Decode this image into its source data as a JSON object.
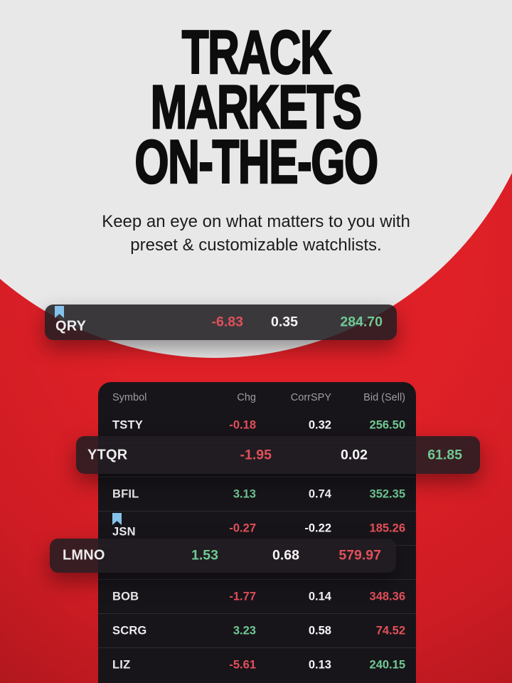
{
  "hero": {
    "title_lines": [
      "TRACK",
      "MARKETS",
      "ON-THE-GO"
    ],
    "subtitle_lines": [
      "Keep an eye on what matters to you with",
      "preset & customizable watchlists."
    ]
  },
  "pills": [
    {
      "symbol": "QRY",
      "bookmarked": true,
      "chg": {
        "text": "-6.83",
        "tone": "down"
      },
      "corrspy": {
        "text": "0.35",
        "tone": "neutral"
      },
      "bid": {
        "text": "284.70",
        "tone": "up"
      }
    },
    {
      "symbol": "YTQR",
      "bookmarked": false,
      "chg": {
        "text": "-1.95",
        "tone": "down"
      },
      "corrspy": {
        "text": "0.02",
        "tone": "neutral"
      },
      "bid": {
        "text": "61.85",
        "tone": "up"
      }
    },
    {
      "symbol": "LMNO",
      "bookmarked": false,
      "chg": {
        "text": "1.53",
        "tone": "up"
      },
      "corrspy": {
        "text": "0.68",
        "tone": "neutral"
      },
      "bid": {
        "text": "579.97",
        "tone": "down"
      }
    }
  ],
  "watchlist": {
    "headers": {
      "symbol": "Symbol",
      "chg": "Chg",
      "corrspy": "CorrSPY",
      "bid": "Bid (Sell)"
    },
    "rows": [
      {
        "symbol": "TSTY",
        "bookmarked": false,
        "chg": {
          "text": "-0.18",
          "tone": "down"
        },
        "corrspy": {
          "text": "0.32",
          "tone": "neutral"
        },
        "bid": {
          "text": "256.50",
          "tone": "up"
        }
      },
      {
        "symbol": "BFIL",
        "bookmarked": false,
        "chg": {
          "text": "3.13",
          "tone": "up"
        },
        "corrspy": {
          "text": "0.74",
          "tone": "neutral"
        },
        "bid": {
          "text": "352.35",
          "tone": "up"
        }
      },
      {
        "symbol": "JSN",
        "bookmarked": true,
        "chg": {
          "text": "-0.27",
          "tone": "down"
        },
        "corrspy": {
          "text": "-0.22",
          "tone": "neutral"
        },
        "bid": {
          "text": "185.26",
          "tone": "down"
        }
      },
      {
        "symbol": "BOB",
        "bookmarked": false,
        "chg": {
          "text": "-1.77",
          "tone": "down"
        },
        "corrspy": {
          "text": "0.14",
          "tone": "neutral"
        },
        "bid": {
          "text": "348.36",
          "tone": "down"
        }
      },
      {
        "symbol": "SCRG",
        "bookmarked": false,
        "chg": {
          "text": "3.23",
          "tone": "up"
        },
        "corrspy": {
          "text": "0.58",
          "tone": "neutral"
        },
        "bid": {
          "text": "74.52",
          "tone": "down"
        }
      },
      {
        "symbol": "LIZ",
        "bookmarked": false,
        "chg": {
          "text": "-5.61",
          "tone": "down"
        },
        "corrspy": {
          "text": "0.13",
          "tone": "neutral"
        },
        "bid": {
          "text": "240.15",
          "tone": "up"
        }
      }
    ]
  },
  "colors": {
    "background_red": "#df2027",
    "background_red_dark": "#8c1117",
    "hero_gray": "#e9e8e8",
    "table_bg": "#18151a",
    "divider": "#2e2b30",
    "header_text": "#a09da1",
    "up_green": "#6fca94",
    "down_red": "#e2505a",
    "neutral_white": "#f7f5f7",
    "bookmark_blue": "#85c2ea"
  }
}
